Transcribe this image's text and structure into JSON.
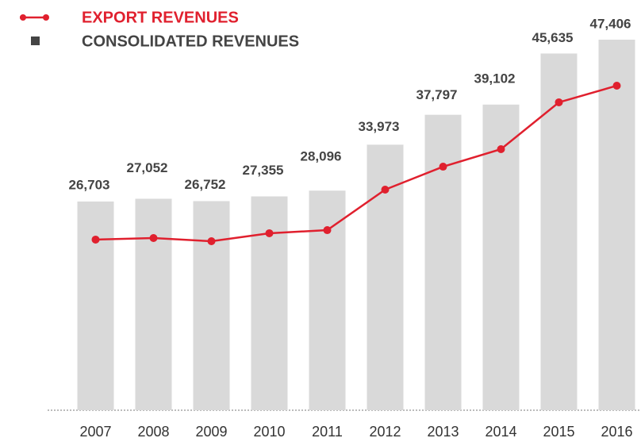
{
  "chart_data": {
    "type": "bar-line",
    "categories": [
      "2007",
      "2008",
      "2009",
      "2010",
      "2011",
      "2012",
      "2013",
      "2014",
      "2015",
      "2016"
    ],
    "series": [
      {
        "name": "EXPORT REVENUES",
        "color": "#e0202e",
        "type": "line",
        "values": [
          21830,
          22030,
          21620,
          22640,
          23040,
          28220,
          31160,
          33400,
          39390,
          41520
        ]
      },
      {
        "name": "CONSOLIDATED REVENUES",
        "color": "#d9d9d9",
        "type": "bar",
        "values": [
          26703,
          27052,
          26752,
          27355,
          28096,
          33973,
          37797,
          39102,
          45635,
          47406
        ],
        "value_labels": [
          "26,703",
          "27,052",
          "26,752",
          "27,355",
          "28,096",
          "33,973",
          "37,797",
          "39,102",
          "45,635",
          "47,406"
        ]
      }
    ]
  }
}
